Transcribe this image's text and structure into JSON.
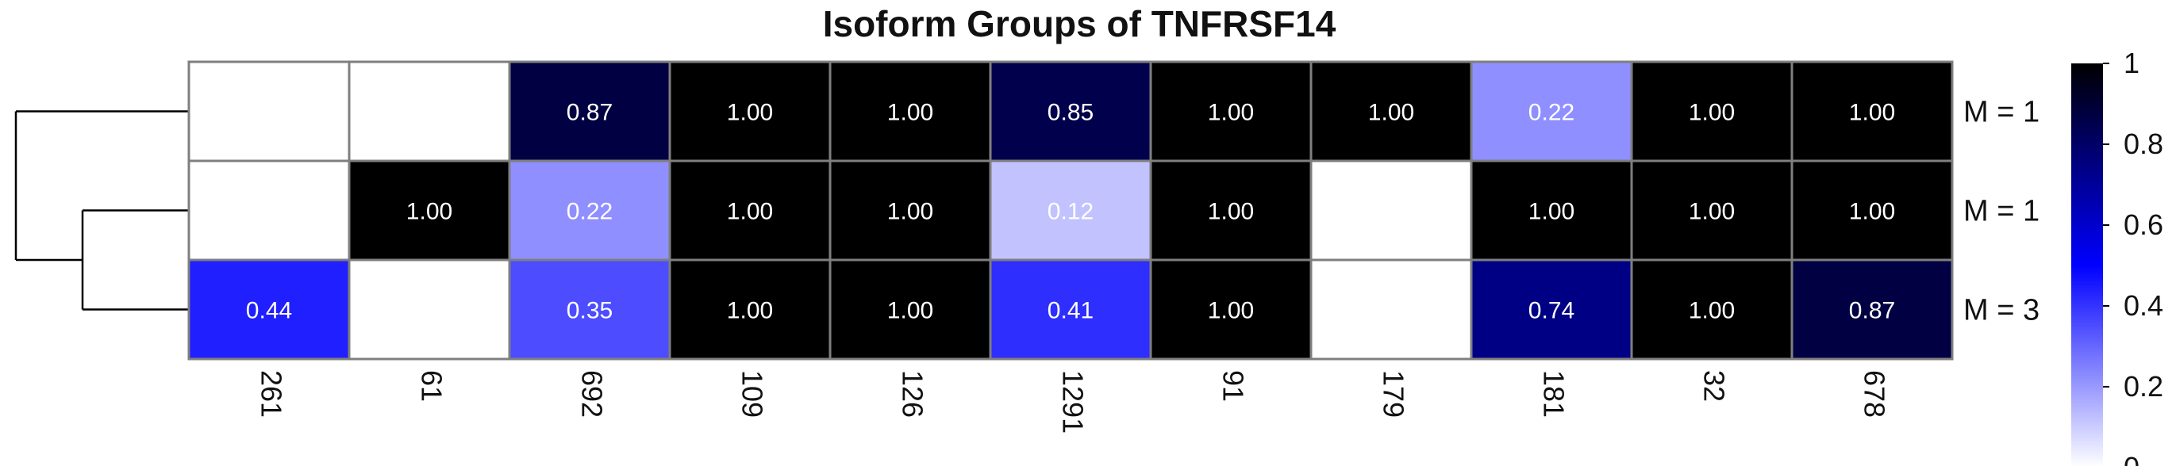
{
  "chart_data": {
    "type": "heatmap",
    "title": "Isoform Groups of TNFRSF14",
    "columns": [
      "261",
      "61",
      "692",
      "109",
      "126",
      "1291",
      "91",
      "179",
      "181",
      "32",
      "678"
    ],
    "rows": [
      "M = 1",
      "M = 1",
      "M = 3"
    ],
    "values": [
      [
        null,
        null,
        0.87,
        1.0,
        1.0,
        0.85,
        1.0,
        1.0,
        0.22,
        1.0,
        1.0
      ],
      [
        null,
        1.0,
        0.22,
        1.0,
        1.0,
        0.12,
        1.0,
        null,
        1.0,
        1.0,
        1.0
      ],
      [
        0.44,
        null,
        0.35,
        1.0,
        1.0,
        0.41,
        1.0,
        null,
        0.74,
        1.0,
        0.87
      ]
    ],
    "cell_labels": [
      [
        "",
        "",
        "0.87",
        "1.00",
        "1.00",
        "0.85",
        "1.00",
        "1.00",
        "0.22",
        "1.00",
        "1.00"
      ],
      [
        "",
        "1.00",
        "0.22",
        "1.00",
        "1.00",
        "0.12",
        "1.00",
        "",
        "1.00",
        "1.00",
        "1.00"
      ],
      [
        "0.44",
        "",
        "0.35",
        "1.00",
        "1.00",
        "0.41",
        "1.00",
        "",
        "0.74",
        "1.00",
        "0.87"
      ]
    ],
    "color_scale": {
      "min": 0,
      "max": 1,
      "stops": [
        "#ffffff",
        "#0000ff",
        "#000000"
      ]
    },
    "legend": {
      "ticks": [
        "1",
        "0.8",
        "0.6",
        "0.4",
        "0.2",
        "0"
      ],
      "placement": "right"
    },
    "row_dendrogram": true,
    "grid_color": "#7f7f7f"
  }
}
